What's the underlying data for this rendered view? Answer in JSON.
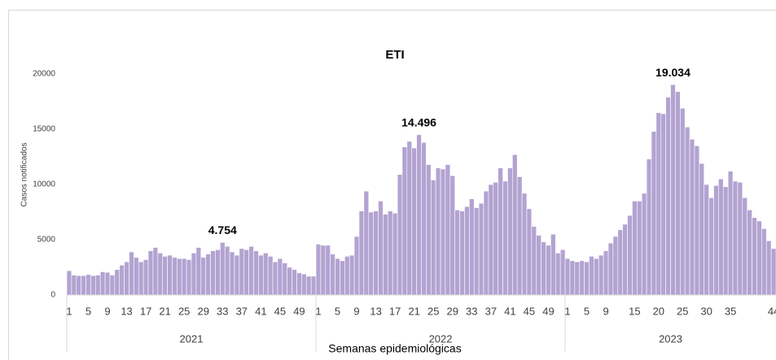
{
  "chart_data": {
    "type": "bar",
    "title": "ETI",
    "y_label": "Casos notificados",
    "x_label": "Semanas epidemiológicas",
    "color": "#b3a3d1",
    "ylim": [
      0,
      20000
    ],
    "yticks": [
      0,
      5000,
      10000,
      15000,
      20000
    ],
    "groups": [
      {
        "label": "2021",
        "categories": [
          "1",
          null,
          null,
          null,
          "5",
          null,
          null,
          null,
          "9",
          null,
          null,
          null,
          "13",
          null,
          null,
          null,
          "17",
          null,
          null,
          null,
          "21",
          null,
          null,
          null,
          "25",
          null,
          null,
          null,
          "29",
          null,
          null,
          null,
          "33",
          null,
          null,
          null,
          "37",
          null,
          null,
          null,
          "41",
          null,
          null,
          null,
          "45",
          null,
          null,
          null,
          "49",
          null,
          null,
          null
        ],
        "values": [
          2200,
          1800,
          1750,
          1750,
          1850,
          1750,
          1800,
          2100,
          2050,
          1800,
          2300,
          2700,
          3000,
          3900,
          3400,
          3000,
          3200,
          4000,
          4300,
          3800,
          3500,
          3600,
          3400,
          3300,
          3300,
          3200,
          3800,
          4300,
          3400,
          3700,
          4000,
          4100,
          4754,
          4400,
          3900,
          3600,
          4200,
          4100,
          4400,
          4000,
          3600,
          3800,
          3500,
          3000,
          3300,
          2900,
          2500,
          2300,
          2000,
          1900,
          1700,
          1700
        ],
        "value_labels": [
          null,
          null,
          null,
          null,
          null,
          null,
          null,
          null,
          null,
          null,
          null,
          null,
          null,
          null,
          null,
          null,
          null,
          null,
          null,
          null,
          null,
          null,
          null,
          null,
          null,
          null,
          null,
          null,
          null,
          null,
          null,
          null,
          "4.754",
          null,
          null,
          null,
          null,
          null,
          null,
          null,
          null,
          null,
          null,
          null,
          null,
          null,
          null,
          null,
          null,
          null,
          null,
          null
        ]
      },
      {
        "label": "2022",
        "categories": [
          "1",
          null,
          null,
          null,
          "5",
          null,
          null,
          null,
          "9",
          null,
          null,
          null,
          "13",
          null,
          null,
          null,
          "17",
          null,
          null,
          null,
          "21",
          null,
          null,
          null,
          "25",
          null,
          null,
          null,
          "29",
          null,
          null,
          null,
          "33",
          null,
          null,
          null,
          "37",
          null,
          null,
          null,
          "41",
          null,
          null,
          null,
          "45",
          null,
          null,
          null,
          "49",
          null,
          null,
          null
        ],
        "values": [
          4600,
          4500,
          4500,
          3700,
          3300,
          3100,
          3500,
          3600,
          5300,
          7600,
          9400,
          7500,
          7600,
          8500,
          7300,
          7600,
          7400,
          10900,
          13400,
          13900,
          13300,
          14496,
          13800,
          11800,
          10400,
          11500,
          11400,
          11800,
          10800,
          7700,
          7600,
          8000,
          8700,
          7900,
          8300,
          9400,
          10000,
          10200,
          11500,
          10300,
          11500,
          12700,
          10700,
          9200,
          7800,
          6200,
          5400,
          4800,
          4500,
          5500,
          3800,
          4100
        ],
        "value_labels": [
          null,
          null,
          null,
          null,
          null,
          null,
          null,
          null,
          null,
          null,
          null,
          null,
          null,
          null,
          null,
          null,
          null,
          null,
          null,
          null,
          null,
          "14.496",
          null,
          null,
          null,
          null,
          null,
          null,
          null,
          null,
          null,
          null,
          null,
          null,
          null,
          null,
          null,
          null,
          null,
          null,
          null,
          null,
          null,
          null,
          null,
          null,
          null,
          null,
          null,
          null,
          null,
          null
        ]
      },
      {
        "label": "2023",
        "categories": [
          "1",
          null,
          null,
          null,
          "5",
          null,
          null,
          null,
          "9",
          null,
          null,
          null,
          null,
          null,
          "15",
          null,
          null,
          null,
          null,
          "20",
          null,
          null,
          null,
          null,
          "25",
          null,
          null,
          null,
          null,
          "30",
          null,
          null,
          null,
          null,
          "35",
          null,
          null,
          null,
          null,
          null,
          null,
          null,
          null,
          "44"
        ],
        "values": [
          3300,
          3100,
          3000,
          3100,
          3000,
          3500,
          3300,
          3600,
          4000,
          4700,
          5300,
          5900,
          6400,
          7200,
          8500,
          8500,
          9200,
          12300,
          14800,
          16500,
          16400,
          17900,
          19034,
          18400,
          16900,
          15200,
          14100,
          13500,
          11900,
          10000,
          8800,
          9900,
          10500,
          9800,
          11200,
          10300,
          10200,
          8800,
          7700,
          7000,
          6700,
          6000,
          4900,
          4200
        ],
        "value_labels": [
          null,
          null,
          null,
          null,
          null,
          null,
          null,
          null,
          null,
          null,
          null,
          null,
          null,
          null,
          null,
          null,
          null,
          null,
          null,
          null,
          null,
          null,
          "19.034",
          null,
          null,
          null,
          null,
          null,
          null,
          null,
          null,
          null,
          null,
          null,
          null,
          null,
          null,
          null,
          null,
          null,
          null,
          null,
          null,
          null
        ]
      }
    ]
  }
}
